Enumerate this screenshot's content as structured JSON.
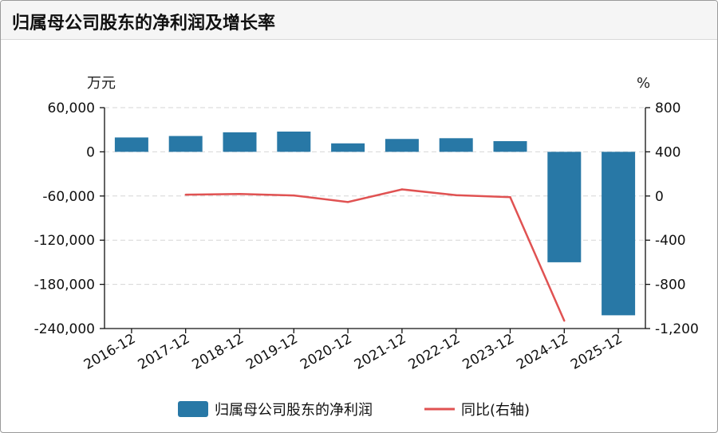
{
  "title": "归属母公司股东的净利润及增长率",
  "chart_data": {
    "type": "bar",
    "categories": [
      "2016-12",
      "2017-12",
      "2018-12",
      "2019-12",
      "2020-12",
      "2021-12",
      "2022-12",
      "2023-12",
      "2024-12",
      "2025-12"
    ],
    "series": [
      {
        "name": "归属母公司股东的净利润",
        "type": "bar",
        "axis": "left",
        "color": "#2878a6",
        "values": [
          19500,
          21500,
          26500,
          27500,
          11500,
          17500,
          18500,
          14500,
          -150000,
          -222000
        ]
      },
      {
        "name": "同比(右轴)",
        "type": "line",
        "axis": "right",
        "color": "#e05252",
        "values": [
          null,
          12,
          18,
          5,
          -55,
          60,
          8,
          -10,
          -1130,
          null
        ]
      }
    ],
    "left_axis": {
      "unit": "万元",
      "ylim": [
        -240000,
        60000
      ],
      "ticks": [
        60000,
        0,
        -60000,
        -120000,
        -180000,
        -240000
      ],
      "tick_labels": [
        "60,000",
        "0",
        "-60,000",
        "-120,000",
        "-180,000",
        "-240,000"
      ]
    },
    "right_axis": {
      "unit": "%",
      "ylim": [
        -1200,
        800
      ],
      "ticks": [
        800,
        400,
        0,
        -400,
        -800,
        -1200
      ],
      "tick_labels": [
        "800",
        "400",
        "0",
        "-400",
        "-800",
        "-1,200"
      ]
    },
    "grid": true,
    "legend_position": "bottom-center"
  }
}
